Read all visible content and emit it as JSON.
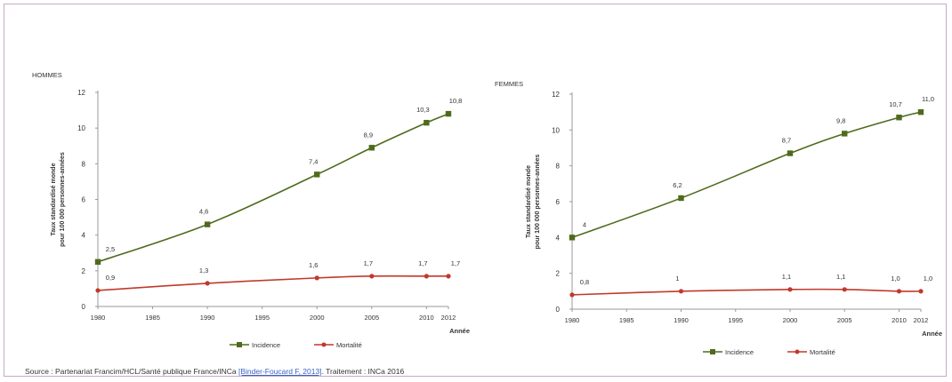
{
  "colors": {
    "incidence": "#4e6b1d",
    "mortalite": "#c0392b",
    "axis": "#9a9a9a",
    "frame": "#c6a9c4"
  },
  "source": {
    "prefix": "Source : Partenariat Francim/HCL/Santé publique France/INCa ",
    "link": "[Binder-Foucard F, 2013]",
    "suffix": ". Traitement : INCa 2016"
  },
  "chart_data": [
    {
      "type": "line",
      "title": "HOMMES",
      "xlabel": "Année",
      "ylabel": [
        "Taux standardisé monde",
        "pour 100 000 personnes-années"
      ],
      "x_ticks": [
        1980,
        1985,
        1990,
        1995,
        2000,
        2005,
        2010,
        2012
      ],
      "y_ticks": [
        0,
        2,
        4,
        6,
        8,
        10,
        12
      ],
      "xlim": [
        1980,
        2012
      ],
      "ylim": [
        0,
        12
      ],
      "legend_position": "bottom",
      "series": [
        {
          "name": "Incidence",
          "color_key": "incidence",
          "marker": "square",
          "x": [
            1980,
            1990,
            2000,
            2005,
            2010,
            2012
          ],
          "values": [
            2.5,
            4.6,
            7.4,
            8.9,
            10.3,
            10.8
          ],
          "labels": [
            "2,5",
            "4,6",
            "7,4",
            "8,9",
            "10,3",
            "10,8"
          ]
        },
        {
          "name": "Mortalité",
          "color_key": "mortalite",
          "marker": "circle",
          "x": [
            1980,
            1990,
            2000,
            2005,
            2010,
            2012
          ],
          "values": [
            0.9,
            1.3,
            1.6,
            1.7,
            1.7,
            1.7
          ],
          "labels": [
            "0,9",
            "1,3",
            "1,6",
            "1,7",
            "1,7",
            "1,7"
          ]
        }
      ]
    },
    {
      "type": "line",
      "title": "FEMMES",
      "xlabel": "Année",
      "ylabel": [
        "Taux standardisé monde",
        "pour 100 000 personnes-années"
      ],
      "x_ticks": [
        1980,
        1985,
        1990,
        1995,
        2000,
        2005,
        2010,
        2012
      ],
      "y_ticks": [
        0,
        2,
        4,
        6,
        8,
        10,
        12
      ],
      "xlim": [
        1980,
        2012
      ],
      "ylim": [
        0,
        12
      ],
      "legend_position": "bottom",
      "series": [
        {
          "name": "Incidence",
          "color_key": "incidence",
          "marker": "square",
          "x": [
            1980,
            1990,
            2000,
            2005,
            2010,
            2012
          ],
          "values": [
            4.0,
            6.2,
            8.7,
            9.8,
            10.7,
            11.0
          ],
          "labels": [
            "4",
            "6,2",
            "8,7",
            "9,8",
            "10,7",
            "11,0"
          ]
        },
        {
          "name": "Mortalité",
          "color_key": "mortalite",
          "marker": "circle",
          "x": [
            1980,
            1990,
            2000,
            2005,
            2010,
            2012
          ],
          "values": [
            0.8,
            1.0,
            1.1,
            1.1,
            1.0,
            1.0
          ],
          "labels": [
            "0,8",
            "1",
            "1,1",
            "1,1",
            "1,0",
            "1,0"
          ]
        }
      ]
    }
  ]
}
